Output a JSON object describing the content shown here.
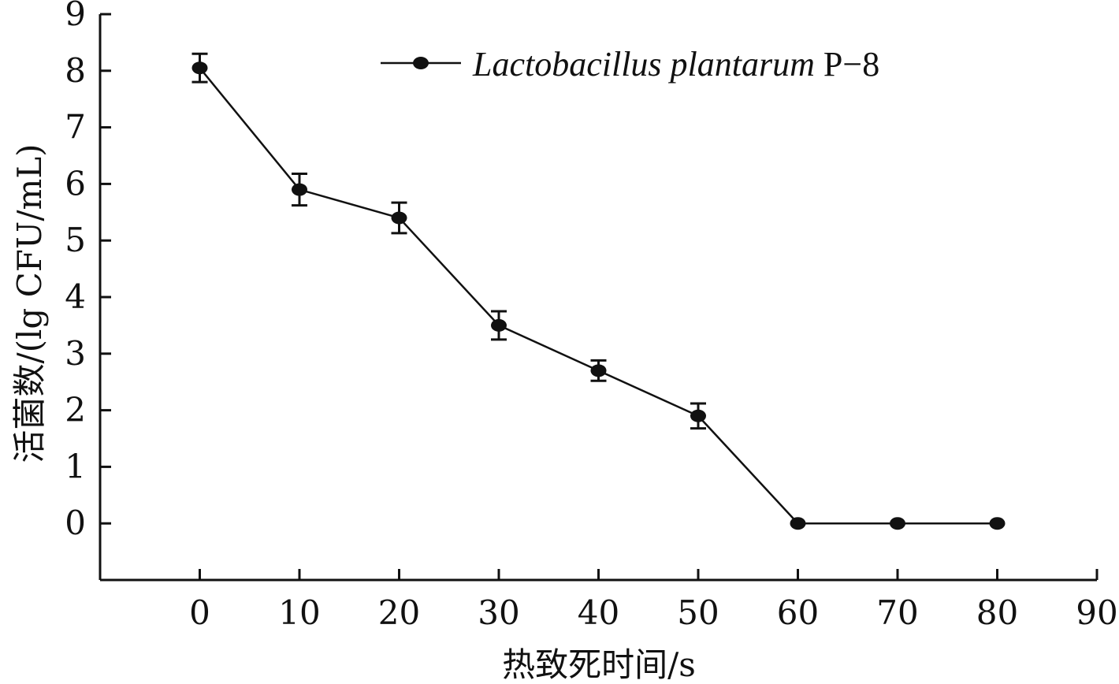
{
  "chart_data": {
    "type": "line",
    "xlabel": "热致死时间/s",
    "ylabel": "活菌数/(lg CFU/mL)",
    "xlim": [
      -10,
      90
    ],
    "ylim": [
      -1,
      9
    ],
    "xticks": [
      0,
      10,
      20,
      30,
      40,
      50,
      60,
      70,
      80,
      90
    ],
    "yticks": [
      0,
      1,
      2,
      3,
      4,
      5,
      6,
      7,
      8,
      9
    ],
    "x": [
      0,
      10,
      20,
      30,
      40,
      50,
      60,
      70,
      80
    ],
    "series": [
      {
        "name_italic": "Lactobacillus plantarum",
        "name_suffix": " P−8",
        "values": [
          8.05,
          5.9,
          5.4,
          3.5,
          2.7,
          1.9,
          0,
          0,
          0
        ],
        "error": [
          0.25,
          0.28,
          0.27,
          0.25,
          0.18,
          0.22,
          0,
          0,
          0
        ],
        "color": "#111111",
        "marker": "circle"
      }
    ],
    "legend_position": "top-right",
    "grid": false
  }
}
